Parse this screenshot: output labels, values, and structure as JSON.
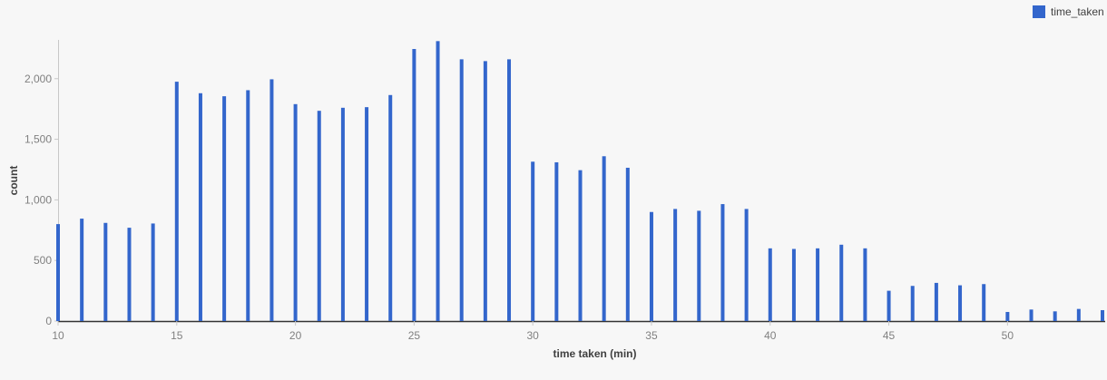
{
  "chart_data": {
    "type": "bar",
    "xlabel": "time taken (min)",
    "ylabel": "count",
    "xlim": [
      10,
      54
    ],
    "ylim": [
      0,
      2320
    ],
    "xticks": [
      10,
      15,
      20,
      25,
      30,
      35,
      40,
      45,
      50
    ],
    "yticks": [
      0,
      500,
      1000,
      1500,
      2000
    ],
    "ytick_labels": [
      "0",
      "500",
      "1,000",
      "1,500",
      "2,000"
    ],
    "grid": false,
    "legend_position": "top-right",
    "series": [
      {
        "name": "time_taken",
        "color": "#3366cc",
        "x": [
          10,
          11,
          12,
          13,
          14,
          15,
          16,
          17,
          18,
          19,
          20,
          21,
          22,
          23,
          24,
          25,
          26,
          27,
          28,
          29,
          30,
          31,
          32,
          33,
          34,
          35,
          36,
          37,
          38,
          39,
          40,
          41,
          42,
          43,
          44,
          45,
          46,
          47,
          48,
          49,
          50,
          51,
          52,
          53,
          54
        ],
        "values": [
          800,
          845,
          810,
          770,
          805,
          1975,
          1880,
          1855,
          1905,
          1995,
          1790,
          1735,
          1760,
          1765,
          1865,
          2245,
          2310,
          2160,
          2145,
          2160,
          1315,
          1310,
          1245,
          1360,
          1265,
          900,
          925,
          910,
          965,
          925,
          600,
          595,
          600,
          630,
          600,
          250,
          290,
          315,
          295,
          305,
          75,
          95,
          80,
          100,
          90
        ]
      }
    ]
  }
}
